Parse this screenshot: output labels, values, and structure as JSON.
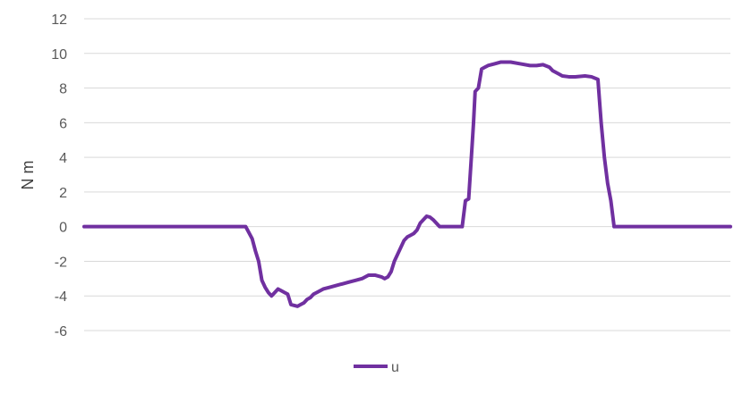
{
  "chart_data": {
    "type": "line",
    "title": "",
    "xlabel": "",
    "ylabel": "N m",
    "ylim": [
      -6,
      12
    ],
    "yticks": [
      12,
      10,
      8,
      6,
      4,
      2,
      0,
      -2,
      -4,
      -6
    ],
    "grid": true,
    "legend": {
      "position": "bottom",
      "entries": [
        "u"
      ]
    },
    "colors": {
      "series": "#7030a0",
      "grid": "#d9d9d9",
      "text": "#595959"
    },
    "x_range": [
      0,
      200
    ],
    "series": [
      {
        "name": "u",
        "x": [
          0,
          10,
          20,
          30,
          40,
          45,
          50,
          52,
          53,
          54,
          55,
          56,
          57,
          58,
          60,
          61,
          62,
          63,
          64,
          66,
          67,
          68,
          69,
          70,
          71,
          72,
          74,
          76,
          78,
          80,
          82,
          84,
          86,
          88,
          90,
          92,
          93,
          94,
          95,
          96,
          97,
          98,
          99,
          100,
          101,
          102,
          103,
          104,
          105,
          106,
          107,
          108,
          110,
          111,
          112,
          114,
          115,
          116,
          117,
          118,
          119,
          120,
          120.5,
          121,
          122,
          123,
          124,
          125,
          127,
          129,
          130,
          132,
          135,
          138,
          140,
          142,
          144,
          145,
          147,
          148,
          150,
          152,
          155,
          157,
          159,
          160,
          161,
          162,
          163,
          164,
          165,
          166,
          170,
          180,
          190,
          200
        ],
        "y": [
          0,
          0,
          0,
          0,
          0,
          0,
          0,
          -0.7,
          -1.4,
          -2,
          -3.1,
          -3.5,
          -3.8,
          -4.0,
          -3.6,
          -3.7,
          -3.8,
          -3.9,
          -4.5,
          -4.6,
          -4.5,
          -4.4,
          -4.2,
          -4.1,
          -3.9,
          -3.8,
          -3.6,
          -3.5,
          -3.4,
          -3.3,
          -3.2,
          -3.1,
          -3.0,
          -2.8,
          -2.8,
          -2.9,
          -3.0,
          -2.9,
          -2.6,
          -2.0,
          -1.6,
          -1.2,
          -0.8,
          -0.6,
          -0.5,
          -0.4,
          -0.2,
          0.2,
          0.4,
          0.6,
          0.55,
          0.4,
          0,
          0,
          0,
          0,
          0,
          0,
          0,
          1.5,
          1.6,
          4.5,
          6,
          7.8,
          8.0,
          9.1,
          9.2,
          9.3,
          9.4,
          9.5,
          9.5,
          9.5,
          9.4,
          9.3,
          9.3,
          9.35,
          9.2,
          9.0,
          8.8,
          8.7,
          8.65,
          8.65,
          8.7,
          8.65,
          8.5,
          6,
          4.0,
          2.5,
          1.5,
          0,
          0,
          0,
          0,
          0,
          0,
          0
        ]
      }
    ]
  }
}
